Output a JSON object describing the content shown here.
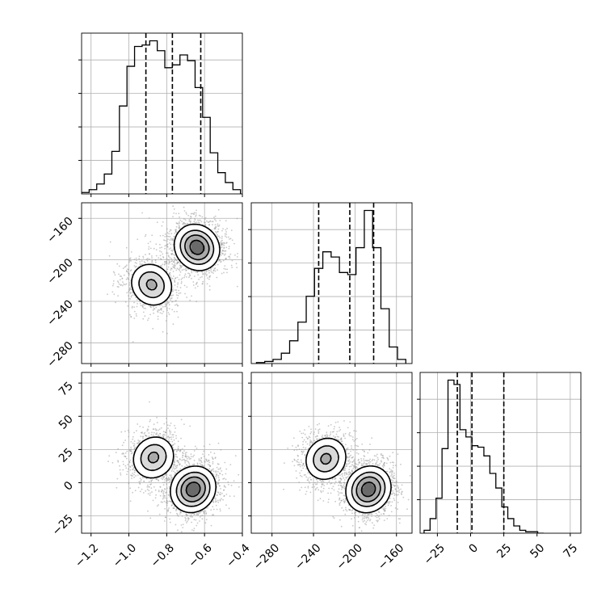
{
  "chart_data": {
    "type": "corner",
    "title": "",
    "params": [
      {
        "range": [
          -1.25,
          -0.4
        ],
        "ticks": [
          -1.2,
          -1.0,
          -0.8,
          -0.6,
          -0.4
        ],
        "tick_labels": [
          "−1.2",
          "−1.0",
          "−0.8",
          "−0.6",
          "−0.4"
        ],
        "quantiles": [
          -0.91,
          -0.77,
          -0.62
        ],
        "hist": {
          "edges_start": -1.25,
          "bin_width": 0.04,
          "counts": [
            1,
            3,
            7,
            14,
            30,
            62,
            90,
            104,
            105,
            108,
            101,
            89,
            91,
            98,
            94,
            75,
            54,
            29,
            15,
            8,
            3
          ]
        }
      },
      {
        "range": [
          -300,
          -145
        ],
        "ticks": [
          -280,
          -240,
          -200,
          -160
        ],
        "tick_labels": [
          "−280",
          "−240",
          "−200",
          "−160"
        ],
        "quantiles": [
          -235,
          -205,
          -182
        ],
        "hist": {
          "edges_start": -295,
          "bin_width": 8,
          "counts": [
            1,
            2,
            4,
            10,
            22,
            40,
            65,
            92,
            108,
            103,
            88,
            86,
            112,
            148,
            112,
            53,
            16,
            4
          ]
        }
      },
      {
        "range": [
          -38,
          83
        ],
        "ticks": [
          -25,
          0,
          25,
          50,
          75
        ],
        "tick_labels": [
          "−25",
          "0",
          "25",
          "50",
          "75"
        ],
        "quantiles": [
          -10,
          1,
          25
        ],
        "hist": {
          "edges_start": -35,
          "bin_width": 4.5,
          "counts": [
            2,
            10,
            24,
            58,
            105,
            102,
            71,
            66,
            60,
            59,
            53,
            41,
            31,
            18,
            10,
            5,
            2,
            1,
            1,
            0
          ]
        }
      }
    ],
    "pairs": [
      {
        "row": 1,
        "col": 0,
        "modes": [
          [
            -0.88,
            -224,
            0.38
          ],
          [
            -0.64,
            -188,
            0.62
          ]
        ]
      },
      {
        "row": 2,
        "col": 0,
        "modes": [
          [
            -0.87,
            19,
            0.38
          ],
          [
            -0.66,
            -5,
            0.62
          ]
        ]
      },
      {
        "row": 2,
        "col": 1,
        "modes": [
          [
            -228,
            18,
            0.38
          ],
          [
            -187,
            -5,
            0.62
          ]
        ]
      }
    ],
    "style": {
      "line_color": "#000000",
      "point_color": "#9a9a9a",
      "grid": true
    }
  }
}
